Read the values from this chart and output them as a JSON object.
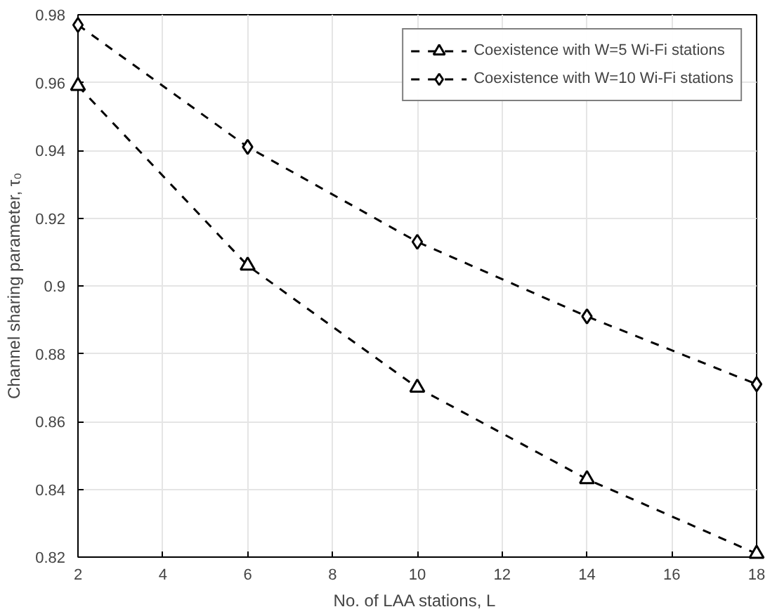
{
  "chart_data": {
    "type": "line",
    "xlabel": "No. of LAA stations,  L",
    "ylabel": "Channel sharing parameter, τ₀",
    "x": [
      2,
      6,
      10,
      14,
      18
    ],
    "series": [
      {
        "name": "Coexistence with W=5 Wi-Fi stations",
        "color": "#000000",
        "values": [
          0.959,
          0.906,
          0.87,
          0.843,
          0.821
        ],
        "marker": "triangle"
      },
      {
        "name": "Coexistence with W=10 Wi-Fi stations",
        "color": "#000000",
        "values": [
          0.977,
          0.941,
          0.913,
          0.891,
          0.871
        ],
        "marker": "diamond"
      }
    ],
    "xlim": [
      2,
      18
    ],
    "xticks": [
      2,
      4,
      6,
      8,
      10,
      12,
      14,
      16,
      18
    ],
    "ylim": [
      0.82,
      0.98
    ],
    "yticks": [
      0.82,
      0.84,
      0.86,
      0.88,
      0.9,
      0.92,
      0.94,
      0.96,
      0.98
    ],
    "grid": true,
    "legend": "top right",
    "line_style": "dashed"
  }
}
